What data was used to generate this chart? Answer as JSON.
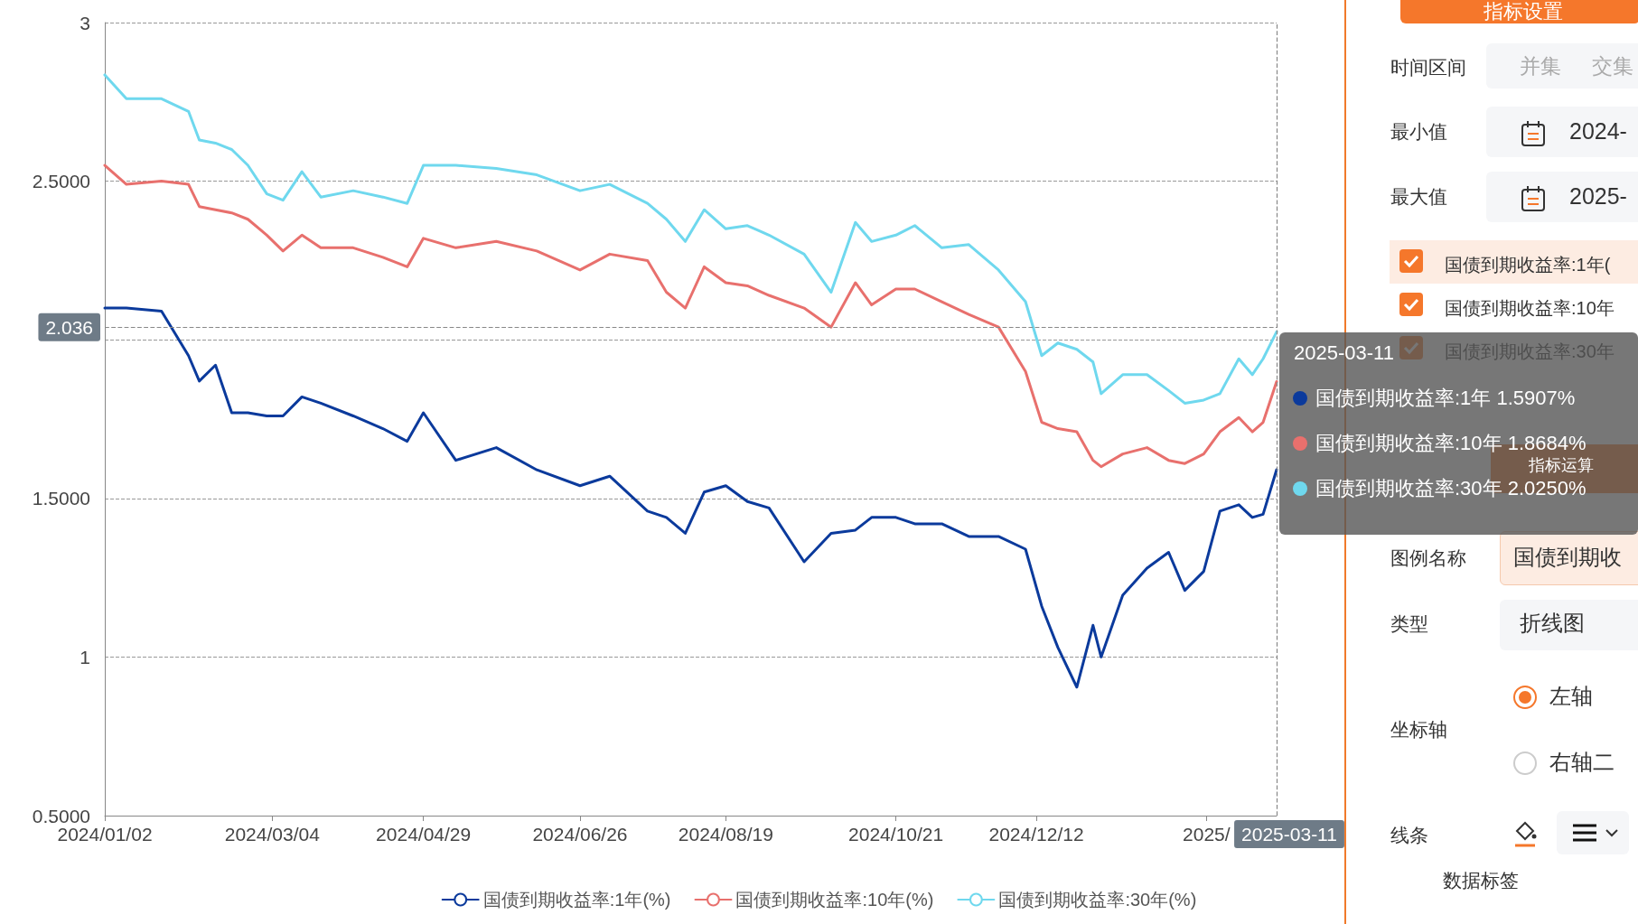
{
  "chart_data": [
    {
      "type": "line",
      "x": [
        "2024-01-02",
        "2024-01-10",
        "2024-01-23",
        "2024-02-02",
        "2024-02-06",
        "2024-02-12",
        "2024-02-18",
        "2024-02-24",
        "2024-03-02",
        "2024-03-08",
        "2024-03-15",
        "2024-03-22",
        "2024-04-03",
        "2024-04-14",
        "2024-04-23",
        "2024-04-29",
        "2024-05-11",
        "2024-05-26",
        "2024-06-10",
        "2024-06-26",
        "2024-07-07",
        "2024-07-21",
        "2024-07-28",
        "2024-08-04",
        "2024-08-11",
        "2024-08-19",
        "2024-08-27",
        "2024-09-04",
        "2024-09-17",
        "2024-09-27",
        "2024-10-06",
        "2024-10-12",
        "2024-10-21",
        "2024-10-28",
        "2024-11-07",
        "2024-11-17",
        "2024-11-28",
        "2024-12-08",
        "2024-12-14",
        "2024-12-20",
        "2024-12-27",
        "2025-01-02",
        "2025-01-05",
        "2025-01-13",
        "2025-01-22",
        "2025-01-30",
        "2025-02-05",
        "2025-02-12",
        "2025-02-18",
        "2025-02-25",
        "2025-03-02",
        "2025-03-06",
        "2025-03-11"
      ],
      "series": [
        {
          "name": "国债到期收益率:1年(%)",
          "color": "#0b3a9c",
          "values": [
            2.1,
            2.1,
            2.09,
            1.95,
            1.87,
            1.92,
            1.77,
            1.77,
            1.76,
            1.76,
            1.82,
            1.8,
            1.76,
            1.72,
            1.68,
            1.77,
            1.62,
            1.66,
            1.59,
            1.54,
            1.57,
            1.46,
            1.44,
            1.39,
            1.52,
            1.54,
            1.49,
            1.47,
            1.3,
            1.39,
            1.4,
            1.44,
            1.44,
            1.42,
            1.42,
            1.38,
            1.38,
            1.34,
            1.16,
            1.03,
            0.905,
            1.1,
            1.0,
            1.195,
            1.28,
            1.33,
            1.21,
            1.27,
            1.46,
            1.48,
            1.44,
            1.45,
            1.5907
          ]
        },
        {
          "name": "国债到期收益率:10年(%)",
          "color": "#e8706d",
          "values": [
            2.55,
            2.49,
            2.5,
            2.49,
            2.42,
            2.41,
            2.4,
            2.38,
            2.33,
            2.28,
            2.33,
            2.29,
            2.29,
            2.26,
            2.23,
            2.32,
            2.29,
            2.31,
            2.28,
            2.22,
            2.27,
            2.25,
            2.15,
            2.1,
            2.23,
            2.18,
            2.17,
            2.14,
            2.1,
            2.04,
            2.18,
            2.11,
            2.16,
            2.16,
            2.12,
            2.08,
            2.04,
            1.9,
            1.74,
            1.72,
            1.71,
            1.62,
            1.6,
            1.64,
            1.66,
            1.62,
            1.61,
            1.64,
            1.71,
            1.755,
            1.71,
            1.74,
            1.8684
          ]
        },
        {
          "name": "国债到期收益率:30年(%)",
          "color": "#6fd8ee",
          "values": [
            2.835,
            2.76,
            2.76,
            2.72,
            2.63,
            2.62,
            2.6,
            2.55,
            2.46,
            2.44,
            2.53,
            2.45,
            2.47,
            2.45,
            2.43,
            2.55,
            2.55,
            2.54,
            2.52,
            2.47,
            2.49,
            2.43,
            2.38,
            2.31,
            2.41,
            2.35,
            2.36,
            2.33,
            2.27,
            2.15,
            2.37,
            2.31,
            2.33,
            2.36,
            2.29,
            2.3,
            2.22,
            2.12,
            1.95,
            1.99,
            1.97,
            1.93,
            1.83,
            1.89,
            1.89,
            1.84,
            1.8,
            1.81,
            1.83,
            1.94,
            1.89,
            1.94,
            2.025
          ]
        }
      ],
      "xlim": [
        "2024-01-02",
        "2025-03-11"
      ],
      "xticks": [
        {
          "value": "2024-01-02",
          "label": "2024/01/02"
        },
        {
          "value": "2024-03-04",
          "label": "2024/03/04"
        },
        {
          "value": "2024-04-29",
          "label": "2024/04/29"
        },
        {
          "value": "2024-06-26",
          "label": "2024/06/26"
        },
        {
          "value": "2024-08-19",
          "label": "2024/08/19"
        },
        {
          "value": "2024-10-21",
          "label": "2024/10/21"
        },
        {
          "value": "2024-12-12",
          "label": "2024/12/12"
        },
        {
          "value": "2025-02-13",
          "label": "2025/"
        }
      ],
      "ylim": [
        0.5,
        3
      ],
      "yticks": [
        {
          "value": 0.5,
          "label": "0.5000"
        },
        1,
        {
          "value": 1.5,
          "label": "1.5000"
        },
        {
          "value": 2,
          "label": null
        },
        {
          "value": 2.5,
          "label": "2.5000"
        },
        3
      ],
      "grid": "y",
      "legend": "bottom",
      "ref_lines": [
        {
          "axis": "y",
          "value": 2.036,
          "label": "2.036",
          "line_style": "dashed"
        },
        {
          "axis": "x",
          "value": "2025-03-11",
          "label": "2025-03-11",
          "line_style": "dashed"
        }
      ],
      "annotations": [
        "2025-03-11",
        "国债到期收益率:1年   1.5907%",
        "国债到期收益率:10年 1.8684%",
        "国债到期收益率:30年 2.0250%"
      ]
    },
    {
      "type": "other",
      "annotations": [
        "指标设置",
        "时间区间",
        "并集",
        "交集",
        "最小值",
        "2024-",
        "最大值",
        "2025-",
        "国债到期收益率:1年(",
        "国债到期收益率:10年",
        "国债到期收益率:30年",
        "指标运算",
        "图例名称",
        "国债到期收",
        "类型",
        "折线图",
        "坐标轴",
        "左轴",
        "右轴二",
        "线条",
        "数据标签"
      ]
    }
  ]
}
